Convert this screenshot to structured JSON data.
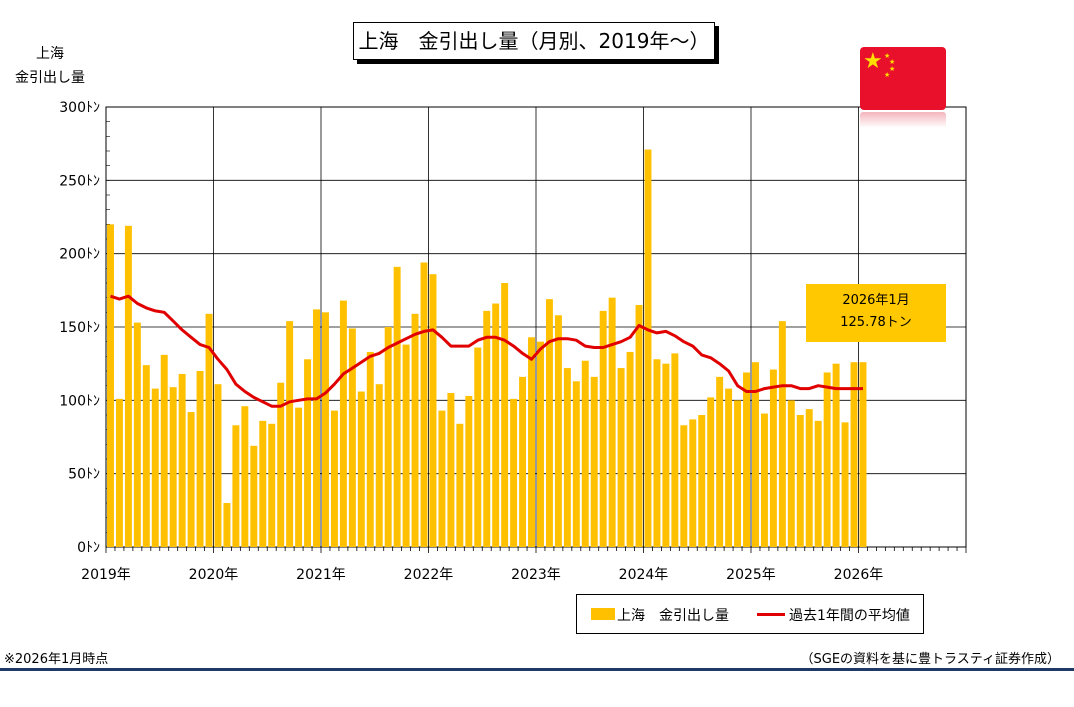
{
  "title": "上海　金引出し量（月別、2019年～）",
  "y_axis_label_line1": "上海",
  "y_axis_label_line2": "金引出し量",
  "callout": {
    "line1": "2026年1月",
    "line2": "125.78トン"
  },
  "legend": {
    "bars": "上海　金引出し量",
    "line": "過去1年間の平均値"
  },
  "footnote": "※2026年1月時点",
  "source": "（SGEの資料を基に豊トラスティ証券作成）",
  "colors": {
    "bar": "#ffc000",
    "line": "#e00000",
    "callout": "#ffc800",
    "flag": "#e8102a"
  },
  "flag_icon": "china-flag-icon",
  "chart_data": {
    "type": "bar",
    "ylim": [
      0,
      300
    ],
    "yticks": [
      0,
      50,
      100,
      150,
      200,
      250,
      300
    ],
    "ytick_labels": [
      "0ﾄﾝ",
      "50ﾄﾝ",
      "100ﾄﾝ",
      "150ﾄﾝ",
      "200ﾄﾝ",
      "250ﾄﾝ",
      "300ﾄﾝ"
    ],
    "x_labels": [
      "2019年",
      "2020年",
      "2021年",
      "2022年",
      "2023年",
      "2024年",
      "2025年",
      "2026年"
    ],
    "months_total": 96,
    "grid": true,
    "legend_position": "bottom",
    "series": [
      {
        "name": "上海　金引出し量",
        "type": "bar",
        "values": [
          220,
          101,
          219,
          153,
          124,
          108,
          131,
          109,
          118,
          92,
          120,
          159,
          111,
          30,
          83,
          96,
          69,
          86,
          84,
          112,
          154,
          95,
          128,
          162,
          160,
          93,
          168,
          149,
          106,
          133,
          111,
          150,
          191,
          138,
          159,
          194,
          186,
          93,
          105,
          84,
          103,
          136,
          161,
          166,
          180,
          101,
          116,
          143,
          140,
          169,
          158,
          122,
          113,
          127,
          116,
          161,
          170,
          122,
          133,
          165,
          271,
          128,
          125,
          132,
          83,
          87,
          90,
          102,
          116,
          108,
          100,
          119,
          126,
          91,
          121,
          154,
          100,
          90,
          94,
          86,
          119,
          125,
          85,
          126,
          126
        ]
      },
      {
        "name": "過去1年間の平均値",
        "type": "line",
        "values": [
          171,
          169,
          171,
          166,
          163,
          161,
          160,
          154,
          148,
          143,
          138,
          136,
          128,
          121,
          111,
          106,
          102,
          99,
          96,
          96,
          99,
          100,
          101,
          101,
          105,
          111,
          118,
          122,
          126,
          130,
          132,
          136,
          139,
          142,
          145,
          147,
          148,
          143,
          137,
          137,
          137,
          141,
          143,
          143,
          141,
          137,
          132,
          128,
          135,
          140,
          142,
          142,
          141,
          137,
          136,
          136,
          138,
          140,
          143,
          151,
          148,
          146,
          147,
          144,
          140,
          137,
          131,
          129,
          125,
          120,
          110,
          106,
          106,
          108,
          109,
          110,
          110,
          108,
          108,
          110,
          109,
          108,
          108,
          108,
          108
        ]
      }
    ]
  }
}
